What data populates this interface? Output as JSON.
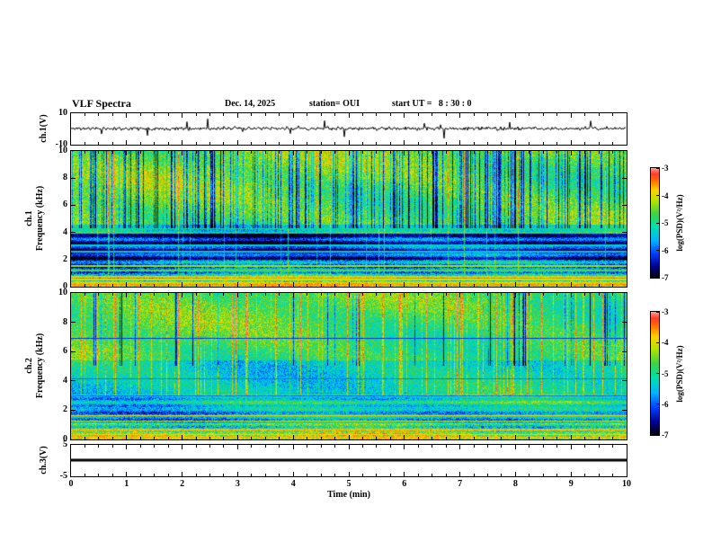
{
  "header": {
    "title": "VLF Spectra",
    "date": "Dec. 14, 2025",
    "station": "station= OUI",
    "start_ut": "start UT =   8 : 30 : 0"
  },
  "xaxis": {
    "label": "Time (min)",
    "min": 0,
    "max": 10,
    "major_ticks": [
      0,
      1,
      2,
      3,
      4,
      5,
      6,
      7,
      8,
      9,
      10
    ],
    "minor_per_major": 4
  },
  "ylabels": {
    "ch1v": "ch.1(V)",
    "ch1f": "ch.1\nFrequency (kHz)",
    "ch2f": "ch.2\nFrequency (kHz)",
    "ch3v": "ch.3(V)"
  },
  "colormap": [
    [
      0,
      "#02020a"
    ],
    [
      0.1,
      "#000090"
    ],
    [
      0.22,
      "#0040ff"
    ],
    [
      0.34,
      "#00b4ff"
    ],
    [
      0.46,
      "#00e0b0"
    ],
    [
      0.58,
      "#3cd24a"
    ],
    [
      0.7,
      "#b4e400"
    ],
    [
      0.8,
      "#ffd200"
    ],
    [
      0.88,
      "#ff7800"
    ],
    [
      0.95,
      "#ff3c28"
    ],
    [
      1,
      "#ff9c8c"
    ]
  ],
  "chart_data": [
    {
      "type": "line",
      "name": "ch1_voltage_waveform",
      "ylabel": "ch.1(V)",
      "ylim": [
        -10,
        10
      ],
      "yticks": [
        10,
        -10
      ],
      "xlim": [
        0,
        10
      ],
      "line_color": "#000000",
      "noise_amp": 1.1,
      "spike_prob": 0.025,
      "spike_amp": 6,
      "seed": 11
    },
    {
      "type": "heatmap",
      "name": "ch1_spectrogram",
      "ylabel": "ch.1 Frequency (kHz)",
      "ylim": [
        0,
        10
      ],
      "yticks": [
        10,
        8,
        6,
        4,
        2,
        0
      ],
      "xlim": [
        0,
        10
      ],
      "seed": 21,
      "colorbar": {
        "label": "log(PSD)(V²/Hz)",
        "min": -7,
        "max": -3,
        "ticks": [
          -3,
          -4,
          -5,
          -6,
          -7
        ]
      },
      "bands": [
        {
          "f": [
            4.6,
            10.01
          ],
          "base": -4.55,
          "noise": 0.55
        },
        {
          "f": [
            3.9,
            4.6
          ],
          "base": -5.3,
          "noise": 0.5
        },
        {
          "f": [
            2.0,
            3.9
          ],
          "base": -6.35,
          "noise": 0.45
        },
        {
          "f": [
            0.95,
            2.0
          ],
          "base": -5.9,
          "noise": 0.6
        },
        {
          "f": [
            0.38,
            0.95
          ],
          "base": -5.1,
          "noise": 0.8
        },
        {
          "f": [
            -0.01,
            0.38
          ],
          "base": -4.1,
          "noise": 0.6
        }
      ],
      "stripes": {
        "f": [
          0.9,
          4.0
        ],
        "amp": 0.55,
        "freq": 11.0,
        "phase": 1.0
      },
      "hlines": [
        {
          "f": 4.25,
          "v": -5.0,
          "hw": 0.04
        },
        {
          "f": 3.05,
          "v": -5.35,
          "hw": 0.05
        },
        {
          "f": 2.55,
          "v": -5.5,
          "hw": 0.05
        },
        {
          "f": 1.5,
          "v": -4.3,
          "hw": 0.06
        },
        {
          "f": 1.15,
          "v": -4.6,
          "hw": 0.05
        },
        {
          "f": 0.7,
          "v": -3.75,
          "hw": 0.07
        },
        {
          "f": 0.5,
          "v": -3.9,
          "hw": 0.05
        },
        {
          "f": 0.28,
          "v": -4.0,
          "hw": 0.05
        },
        {
          "f": 0.08,
          "v": -3.6,
          "hw": 0.08
        }
      ],
      "streaks": {
        "dark_prob": 0.3,
        "dark_fmin": 4.3,
        "bright_prob": 0.05,
        "bright_fmin": 0.9
      }
    },
    {
      "type": "heatmap",
      "name": "ch2_spectrogram",
      "ylabel": "ch.2 Frequency (kHz)",
      "ylim": [
        0,
        10
      ],
      "yticks": [
        10,
        8,
        6,
        4,
        2,
        0
      ],
      "xlim": [
        0,
        10
      ],
      "seed": 57,
      "colorbar": {
        "label": "log(PSD)(V²/Hz)",
        "min": -7,
        "max": -3,
        "ticks": [
          -3,
          -4,
          -5,
          -6,
          -7
        ]
      },
      "bands": [
        {
          "f": [
            5.4,
            10.01
          ],
          "base": -4.75,
          "noise": 0.5
        },
        {
          "f": [
            2.1,
            5.4
          ],
          "base": -5.2,
          "noise": 0.5
        },
        {
          "f": [
            1.05,
            2.1
          ],
          "base": -5.6,
          "noise": 0.55
        },
        {
          "f": [
            0.45,
            1.05
          ],
          "base": -5.0,
          "noise": 0.8
        },
        {
          "f": [
            -0.01,
            0.45
          ],
          "base": -4.3,
          "noise": 0.7
        }
      ],
      "stripes": {
        "f": [
          0.4,
          3.2
        ],
        "amp": 0.4,
        "freq": 13.0,
        "phase": 0.3
      },
      "hlines": [
        {
          "f": 6.9,
          "v": -6.2,
          "hw": 0.035
        },
        {
          "f": 4.15,
          "v": -5.9,
          "hw": 0.03
        },
        {
          "f": 2.95,
          "v": -5.9,
          "hw": 0.03
        },
        {
          "f": 1.6,
          "v": -3.85,
          "hw": 0.05
        },
        {
          "f": 1.25,
          "v": -4.1,
          "hw": 0.04
        },
        {
          "f": 0.62,
          "v": -3.7,
          "hw": 0.06
        },
        {
          "f": 0.3,
          "v": -3.85,
          "hw": 0.05
        },
        {
          "f": 0.07,
          "v": -3.7,
          "hw": 0.07
        }
      ],
      "streaks": {
        "dark_prob": 0.06,
        "dark_fmin": 5.0,
        "bright_prob": 0.12,
        "bright_fmin": 3.0
      }
    },
    {
      "type": "line",
      "name": "ch3_voltage_flatline",
      "ylabel": "ch.3(V)",
      "ylim": [
        -5,
        5
      ],
      "yticks": [
        5,
        -5
      ],
      "xlim": [
        0,
        10
      ],
      "line_color": "#000000",
      "constant": 0,
      "line_width": 3,
      "seed": 3
    }
  ]
}
